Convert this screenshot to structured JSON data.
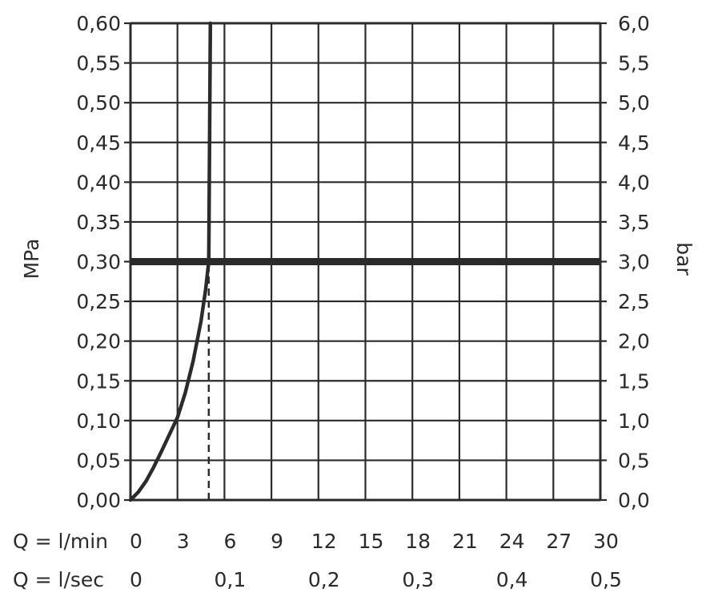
{
  "chart_data": {
    "type": "line",
    "xlabel_rows": [
      {
        "label": "Q = l/min",
        "ticks": [
          "0",
          "3",
          "6",
          "9",
          "12",
          "15",
          "18",
          "21",
          "24",
          "27",
          "30"
        ]
      },
      {
        "label": "Q = l/sec",
        "ticks": [
          "0",
          "0,1",
          "0,2",
          "0,3",
          "0,4",
          "0,5"
        ]
      }
    ],
    "ylabel_left": "MPa",
    "ylabel_right": "bar",
    "yticks_left": [
      "0,00",
      "0,05",
      "0,10",
      "0,15",
      "0,20",
      "0,25",
      "0,30",
      "0,35",
      "0,40",
      "0,45",
      "0,50",
      "0,55",
      "0,60"
    ],
    "yticks_right": [
      "0,0",
      "0,5",
      "1,0",
      "1,5",
      "2,0",
      "2,5",
      "3,0",
      "3,5",
      "4,0",
      "4,5",
      "5,0",
      "5,5",
      "6,0"
    ],
    "xlim": [
      0,
      30
    ],
    "ylim": [
      0,
      0.6
    ],
    "grid": true,
    "series": [
      {
        "values_x": [
          0,
          0.5,
          1,
          1.5,
          2,
          2.5,
          3,
          3.5,
          4,
          4.5,
          4.8,
          5.0,
          5.05,
          5.1
        ],
        "values_y": [
          0,
          0.01,
          0.024,
          0.042,
          0.062,
          0.083,
          0.104,
          0.135,
          0.175,
          0.225,
          0.265,
          0.3,
          0.45,
          0.6
        ]
      }
    ],
    "reference_lines": [
      {
        "orientation": "horizontal",
        "y": 0.3,
        "style": "thick"
      },
      {
        "orientation": "vertical",
        "x": 5.0,
        "style": "dashed",
        "y_from": 0,
        "y_to": 0.3
      }
    ],
    "colors": {
      "line": "#2b2b2b",
      "grid": "#2b2b2b",
      "background": "#ffffff"
    }
  }
}
